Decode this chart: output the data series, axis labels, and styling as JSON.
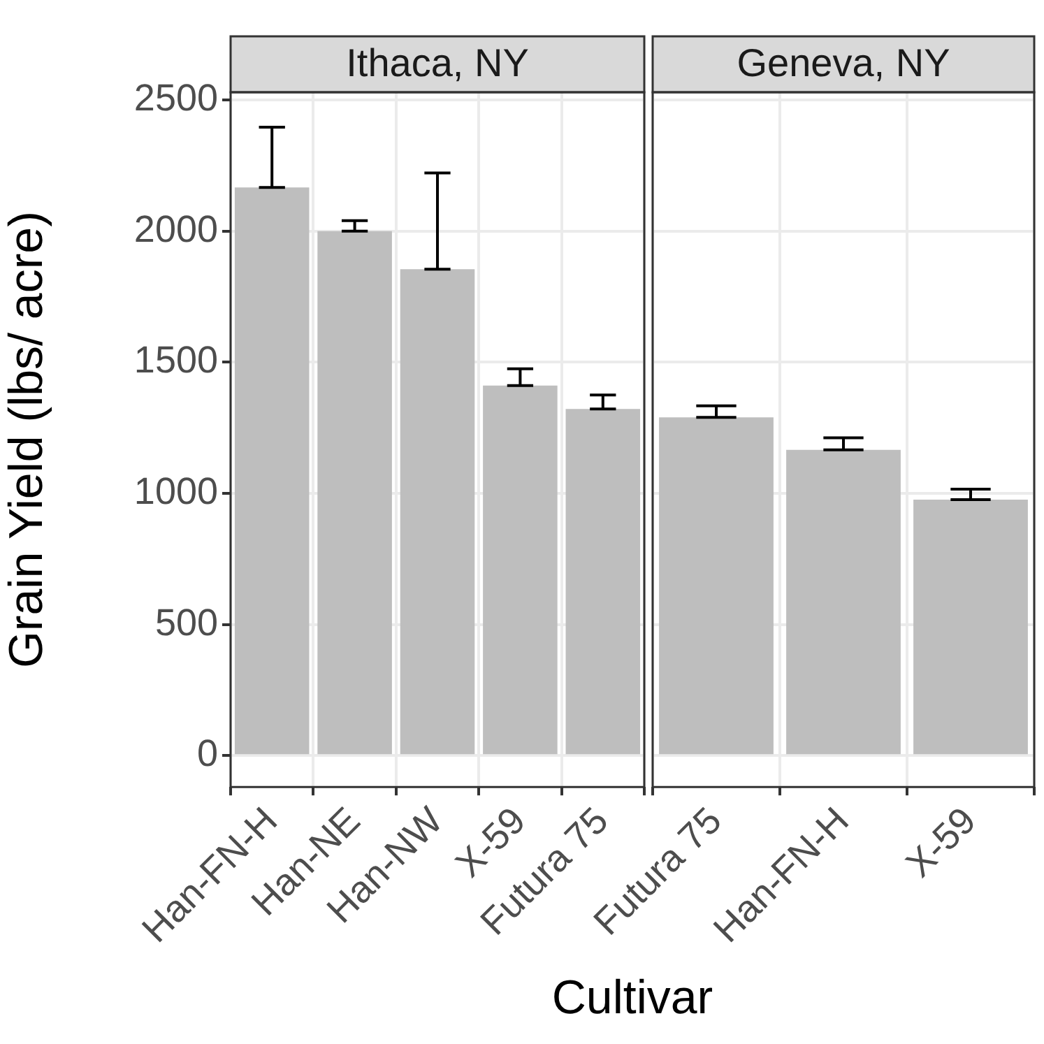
{
  "chart_data": [
    {
      "type": "bar",
      "title": "Ithaca, NY",
      "ylabel": "Grain Yield (lbs/ acre)",
      "xlabel": "Cultivar",
      "categories": [
        "Han-FN-H",
        "Han-NE",
        "Han-NW",
        "X-59",
        "Futura 75"
      ],
      "values": [
        2167,
        2000,
        1855,
        1411,
        1322
      ],
      "errors": [
        [
          2167,
          2397
        ],
        [
          2000,
          2040
        ],
        [
          1855,
          2222
        ],
        [
          1411,
          1475
        ],
        [
          1322,
          1375
        ]
      ],
      "color": "#bebebe",
      "ylim": [
        -120,
        2530
      ],
      "yticks": [
        0,
        500,
        1000,
        1500,
        2000,
        2500
      ],
      "grid": true,
      "legend": false
    },
    {
      "type": "bar",
      "title": "Geneva, NY",
      "categories": [
        "Futura 75",
        "Han-FN-H",
        "X-59"
      ],
      "values": [
        1290,
        1166,
        976
      ],
      "errors": [
        [
          1290,
          1334
        ],
        [
          1166,
          1212
        ],
        [
          976,
          1016
        ]
      ],
      "color": "#bebebe",
      "ylim": [
        -120,
        2530
      ],
      "yticks": [
        0,
        500,
        1000,
        1500,
        2000,
        2500
      ],
      "grid": true,
      "legend": false,
      "tick_labels": "x"
    }
  ]
}
